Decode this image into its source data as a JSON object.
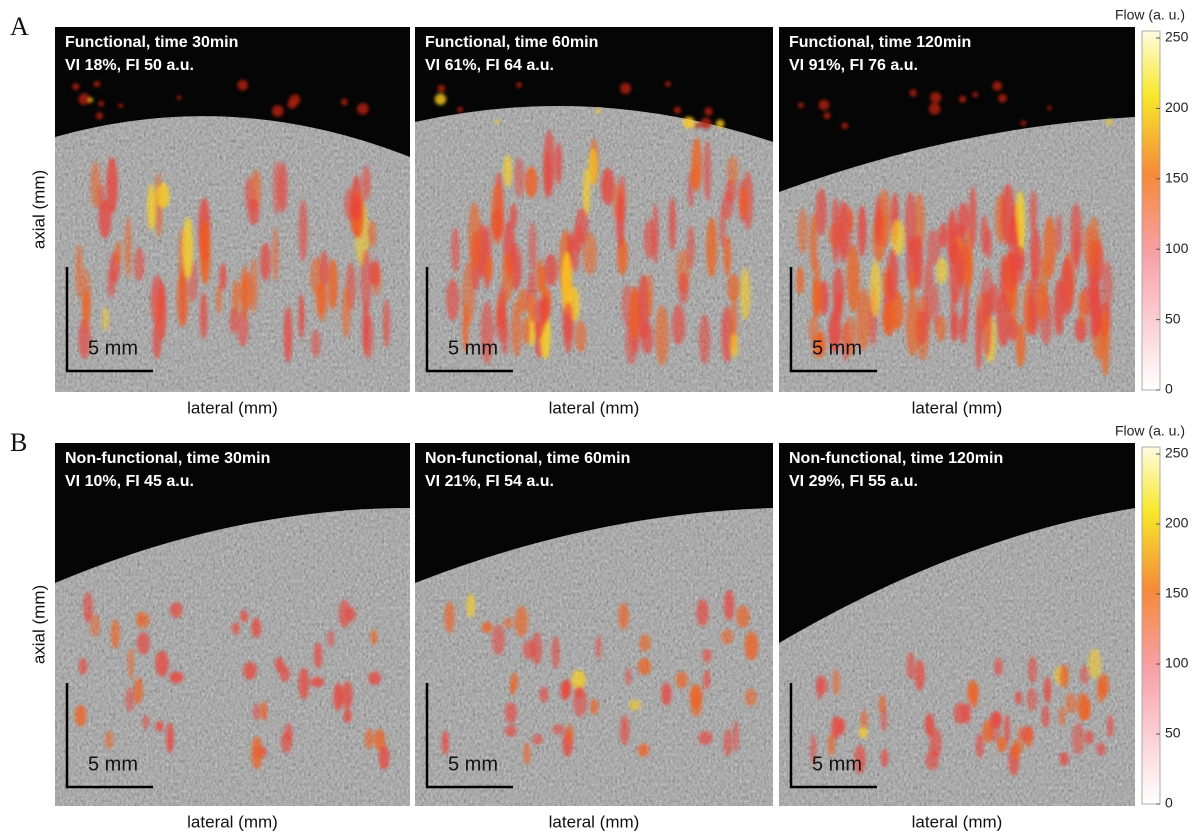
{
  "rows": [
    {
      "label": "A",
      "y_label": "axial (mm)",
      "panels": [
        {
          "title": "Functional, time 30min",
          "subtitle": "VI 18%, FI 50 a.u.",
          "x_label": "lateral (mm)",
          "scale_bar": "5 mm"
        },
        {
          "title": "Functional, time 60min",
          "subtitle": "VI 61%, FI 64 a.u.",
          "x_label": "lateral (mm)",
          "scale_bar": "5 mm"
        },
        {
          "title": "Functional, time 120min",
          "subtitle": "VI 91%, FI 76 a.u.",
          "x_label": "lateral (mm)",
          "scale_bar": "5 mm"
        }
      ],
      "colorbar": {
        "title": "Flow (a. u.)",
        "lim": [
          0,
          255
        ],
        "ticks": [
          0,
          50,
          100,
          150,
          200,
          250
        ]
      }
    },
    {
      "label": "B",
      "y_label": "axial (mm)",
      "panels": [
        {
          "title": "Non-functional, time 30min",
          "subtitle": "VI 10%, FI 45 a.u.",
          "x_label": "lateral (mm)",
          "scale_bar": "5 mm"
        },
        {
          "title": "Non-functional, time 60min",
          "subtitle": "VI 21%, FI 54 a.u.",
          "x_label": "lateral (mm)",
          "scale_bar": "5 mm"
        },
        {
          "title": "Non-functional, time 120min",
          "subtitle": "VI 29%, FI 55 a.u.",
          "x_label": "lateral (mm)",
          "scale_bar": "5 mm"
        }
      ],
      "colorbar": {
        "title": "Flow (a. u.)",
        "lim": [
          0,
          255
        ],
        "ticks": [
          0,
          50,
          100,
          150,
          200,
          250
        ]
      }
    }
  ]
}
